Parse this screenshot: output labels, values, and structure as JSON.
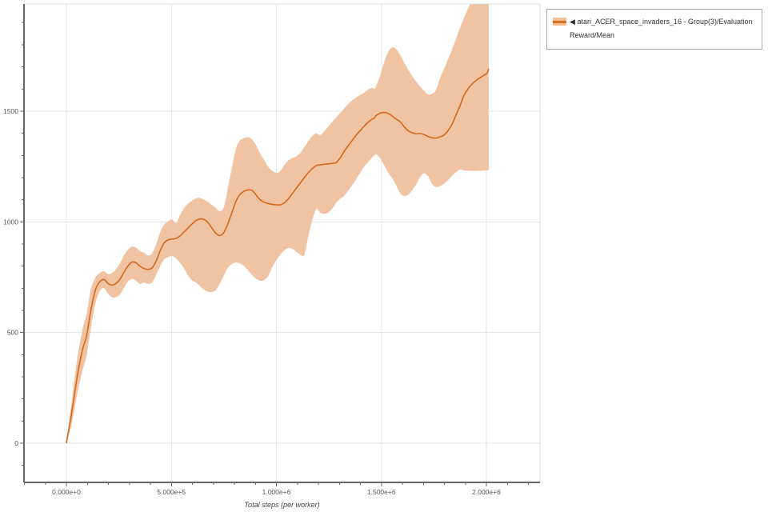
{
  "page": {
    "background": "#ffffff"
  },
  "legend": {
    "marker": "◀",
    "label": "atari_ACER_space_invaders_16 - Group(3)/Evaluation Reward/Mean",
    "swatch_fill": "#f2bb90",
    "swatch_line": "#d9701f",
    "border_color": "#ababab",
    "text_color": "#333333"
  },
  "colors": {
    "grid": "#e5e5e5",
    "spine": "#666666",
    "tick_label": "#555555",
    "axis_label": "#444444",
    "outer_border": "#dedede",
    "plot_background": "#ffffff"
  },
  "chart_data": {
    "type": "line",
    "title": "",
    "xlabel": "Total steps (per worker)",
    "ylabel": "",
    "grid": true,
    "legend_position": "top-right-outside",
    "x_axis": {
      "min": -201905,
      "max": 2255238,
      "minor_tick_step": 100000,
      "major_ticks": [
        {
          "value": 0,
          "label": "0.000e+0"
        },
        {
          "value": 500000,
          "label": "5.000e+5"
        },
        {
          "value": 1000000,
          "label": "1.000e+6"
        },
        {
          "value": 1500000,
          "label": "1.500e+6"
        },
        {
          "value": 2000000,
          "label": "2.000e+6"
        }
      ]
    },
    "y_axis": {
      "min": -177,
      "max": 1984,
      "minor_tick_step": 100,
      "major_ticks": [
        {
          "value": 0,
          "label": "0"
        },
        {
          "value": 500,
          "label": "500"
        },
        {
          "value": 1000,
          "label": "1000"
        },
        {
          "value": 1500,
          "label": "1500"
        }
      ]
    },
    "series": [
      {
        "name": "atari_ACER_space_invaders_16 - Group(3)/Evaluation Reward/Mean",
        "line_color": "#d4691e",
        "band_color": "#f0c3a2",
        "points_format": [
          "step",
          "mean",
          "band_low",
          "band_high"
        ],
        "points": [
          [
            0,
            0,
            0,
            0
          ],
          [
            27000,
            148,
            95,
            205
          ],
          [
            52000,
            304,
            225,
            385
          ],
          [
            77000,
            424,
            330,
            515
          ],
          [
            96000,
            484,
            395,
            585
          ],
          [
            115000,
            593,
            510,
            690
          ],
          [
            128000,
            653,
            585,
            728
          ],
          [
            141000,
            700,
            642,
            752
          ],
          [
            160000,
            730,
            688,
            770
          ],
          [
            179000,
            740,
            700,
            778
          ],
          [
            198000,
            722,
            676,
            764
          ],
          [
            217000,
            714,
            660,
            768
          ],
          [
            236000,
            722,
            660,
            786
          ],
          [
            255000,
            740,
            672,
            812
          ],
          [
            274000,
            772,
            702,
            848
          ],
          [
            293000,
            800,
            730,
            874
          ],
          [
            312000,
            818,
            742,
            888
          ],
          [
            331000,
            815,
            734,
            884
          ],
          [
            350000,
            800,
            720,
            868
          ],
          [
            370000,
            789,
            726,
            860
          ],
          [
            389000,
            785,
            720,
            848
          ],
          [
            408000,
            792,
            726,
            858
          ],
          [
            427000,
            822,
            760,
            898
          ],
          [
            446000,
            868,
            798,
            952
          ],
          [
            465000,
            904,
            830,
            986
          ],
          [
            484000,
            918,
            840,
            1002
          ],
          [
            503000,
            922,
            846,
            1012
          ],
          [
            522000,
            925,
            835,
            995
          ],
          [
            541000,
            936,
            815,
            1030
          ],
          [
            560000,
            954,
            790,
            1062
          ],
          [
            579000,
            972,
            758,
            1082
          ],
          [
            598000,
            990,
            736,
            1096
          ],
          [
            617000,
            1006,
            726,
            1106
          ],
          [
            636000,
            1013,
            710,
            1108
          ],
          [
            655000,
            1011,
            694,
            1100
          ],
          [
            674000,
            997,
            685,
            1090
          ],
          [
            693000,
            972,
            683,
            1076
          ],
          [
            712000,
            948,
            692,
            1062
          ],
          [
            731000,
            938,
            722,
            1048
          ],
          [
            750000,
            952,
            758,
            1068
          ],
          [
            770000,
            994,
            794,
            1158
          ],
          [
            789000,
            1044,
            810,
            1250
          ],
          [
            808000,
            1094,
            816,
            1332
          ],
          [
            827000,
            1124,
            812,
            1368
          ],
          [
            846000,
            1138,
            800,
            1378
          ],
          [
            865000,
            1144,
            782,
            1382
          ],
          [
            884000,
            1142,
            760,
            1372
          ],
          [
            903000,
            1122,
            744,
            1346
          ],
          [
            922000,
            1100,
            734,
            1310
          ],
          [
            941000,
            1089,
            737,
            1280
          ],
          [
            960000,
            1083,
            754,
            1250
          ],
          [
            980000,
            1079,
            794,
            1230
          ],
          [
            1000000,
            1077,
            828,
            1222
          ],
          [
            1019000,
            1077,
            852,
            1230
          ],
          [
            1038000,
            1086,
            872,
            1256
          ],
          [
            1057000,
            1104,
            882,
            1278
          ],
          [
            1076000,
            1128,
            878,
            1288
          ],
          [
            1095000,
            1152,
            864,
            1296
          ],
          [
            1114000,
            1176,
            852,
            1312
          ],
          [
            1133000,
            1200,
            850,
            1338
          ],
          [
            1152000,
            1222,
            935,
            1364
          ],
          [
            1171000,
            1240,
            1008,
            1388
          ],
          [
            1190000,
            1254,
            1058,
            1400
          ],
          [
            1209000,
            1258,
            1042,
            1392
          ],
          [
            1228000,
            1260,
            1036,
            1410
          ],
          [
            1247000,
            1262,
            1042,
            1430
          ],
          [
            1266000,
            1264,
            1060,
            1452
          ],
          [
            1285000,
            1268,
            1086,
            1472
          ],
          [
            1304000,
            1290,
            1104,
            1492
          ],
          [
            1323000,
            1318,
            1118,
            1512
          ],
          [
            1342000,
            1344,
            1142,
            1532
          ],
          [
            1361000,
            1368,
            1166,
            1548
          ],
          [
            1380000,
            1392,
            1194,
            1562
          ],
          [
            1399000,
            1412,
            1222,
            1574
          ],
          [
            1418000,
            1432,
            1250,
            1584
          ],
          [
            1437000,
            1450,
            1270,
            1598
          ],
          [
            1456000,
            1464,
            1292,
            1606
          ],
          [
            1467000,
            1470,
            1300,
            1600
          ],
          [
            1475000,
            1480,
            1305,
            1614
          ],
          [
            1494000,
            1491,
            1288,
            1660
          ],
          [
            1513000,
            1494,
            1256,
            1722
          ],
          [
            1532000,
            1490,
            1222,
            1766
          ],
          [
            1551000,
            1478,
            1198,
            1788
          ],
          [
            1570000,
            1464,
            1165,
            1780
          ],
          [
            1589000,
            1452,
            1130,
            1755
          ],
          [
            1608000,
            1430,
            1117,
            1720
          ],
          [
            1627000,
            1412,
            1122,
            1688
          ],
          [
            1646000,
            1402,
            1142,
            1660
          ],
          [
            1665000,
            1398,
            1168,
            1634
          ],
          [
            1684000,
            1399,
            1202,
            1612
          ],
          [
            1703000,
            1394,
            1219,
            1592
          ],
          [
            1722000,
            1386,
            1206,
            1576
          ],
          [
            1741000,
            1380,
            1172,
            1578
          ],
          [
            1760000,
            1378,
            1158,
            1596
          ],
          [
            1779000,
            1384,
            1162,
            1648
          ],
          [
            1798000,
            1392,
            1172,
            1690
          ],
          [
            1817000,
            1412,
            1188,
            1734
          ],
          [
            1836000,
            1440,
            1208,
            1778
          ],
          [
            1855000,
            1482,
            1224,
            1826
          ],
          [
            1874000,
            1524,
            1236,
            1876
          ],
          [
            1893000,
            1570,
            1232,
            1920
          ],
          [
            1912000,
            1600,
            1231,
            1962
          ],
          [
            1931000,
            1622,
            1230,
            2002
          ],
          [
            1950000,
            1638,
            1230,
            2040
          ],
          [
            1969000,
            1650,
            1231,
            2072
          ],
          [
            1988000,
            1662,
            1232,
            2100
          ],
          [
            2003000,
            1672,
            1233,
            2120
          ],
          [
            2011000,
            1692,
            1234,
            2130
          ]
        ]
      }
    ]
  }
}
